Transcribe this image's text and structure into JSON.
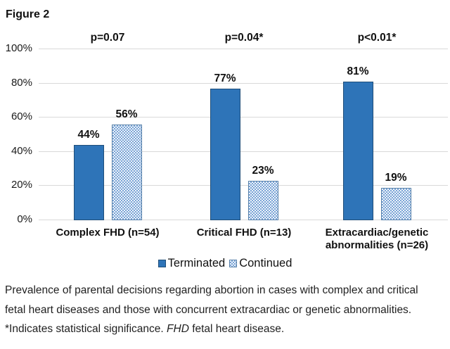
{
  "figure_label": "Figure 2",
  "chart_data": {
    "type": "bar",
    "title": "Figure 2",
    "categories": [
      "Complex FHD (n=54)",
      "Critical FHD (n=13)",
      "Extracardiac/genetic abnormalities (n=26)"
    ],
    "series": [
      {
        "name": "Terminated",
        "values": [
          44,
          77,
          81
        ]
      },
      {
        "name": "Continued",
        "values": [
          56,
          23,
          19
        ]
      }
    ],
    "value_labels": [
      [
        "44%",
        "77%",
        "81%"
      ],
      [
        "56%",
        "23%",
        "19%"
      ]
    ],
    "p_values": [
      "p=0.07",
      "p=0.04*",
      "p<0.01*"
    ],
    "yticks": [
      0,
      20,
      40,
      60,
      80,
      100
    ],
    "ytick_labels": [
      "0%",
      "20%",
      "40%",
      "60%",
      "80%",
      "100%"
    ],
    "ylim": [
      0,
      100
    ],
    "grid": true,
    "legend_position": "bottom",
    "colors": {
      "terminated_fill": "#2e74b8",
      "continued_dot": "#7aa4d6",
      "continued_bg": "#edf3fa",
      "continued_border": "#567fa8",
      "gridline": "#d9d9d9"
    }
  },
  "legend": {
    "items": [
      {
        "label": "Terminated",
        "swatch": "solid"
      },
      {
        "label": "Continued",
        "swatch": "pattern"
      }
    ]
  },
  "caption": {
    "line1": "Prevalence of parental decisions regarding abortion in cases with complex and critical",
    "line2": "fetal heart diseases and those with concurrent extracardiac or genetic abnormalities.",
    "line3_prefix": "*Indicates statistical significance. ",
    "line3_italic": "FHD",
    "line3_suffix": " fetal heart disease."
  }
}
